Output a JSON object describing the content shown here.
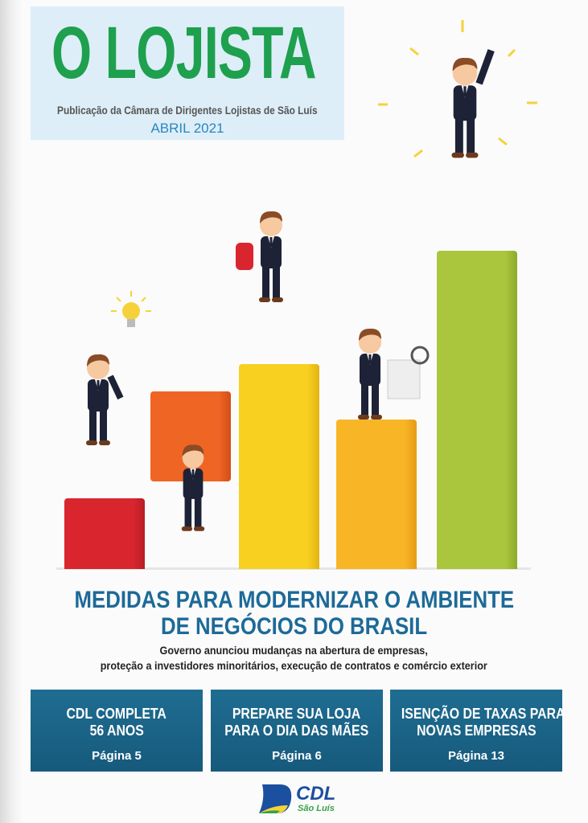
{
  "masthead": {
    "title": "O LOJISTA",
    "publisher": "Publicação da Câmara de Dirigentes Lojistas de São Luís",
    "issue_date": "ABRIL 2021",
    "title_color": "#1ea04e"
  },
  "illustration": {
    "bar_colors": [
      "#d9262e",
      "#ef6524",
      "#f7c81e",
      "#f6b324",
      "#a5c23a"
    ]
  },
  "headline": {
    "line1": "MEDIDAS PARA MODERNIZAR O AMBIENTE",
    "line2": "DE NEGÓCIOS DO BRASIL",
    "sub_line1": "Governo anunciou mudanças na abertura de empresas,",
    "sub_line2": "proteção a investidores minoritários, execução de contratos e comércio exterior"
  },
  "features": [
    {
      "line1": "CDL COMPLETA",
      "line2": "56 ANOS",
      "page": "Página 5"
    },
    {
      "line1": "PREPARE SUA LOJA",
      "line2": "PARA O DIA DAS MÃES",
      "page": "Página 6"
    },
    {
      "line1": "ISENÇÃO DE TAXAS PARA",
      "line2": "NOVAS EMPRESAS",
      "page": "Página 13"
    }
  ],
  "footer_logo": {
    "name": "CDL",
    "city": "São Luís"
  }
}
